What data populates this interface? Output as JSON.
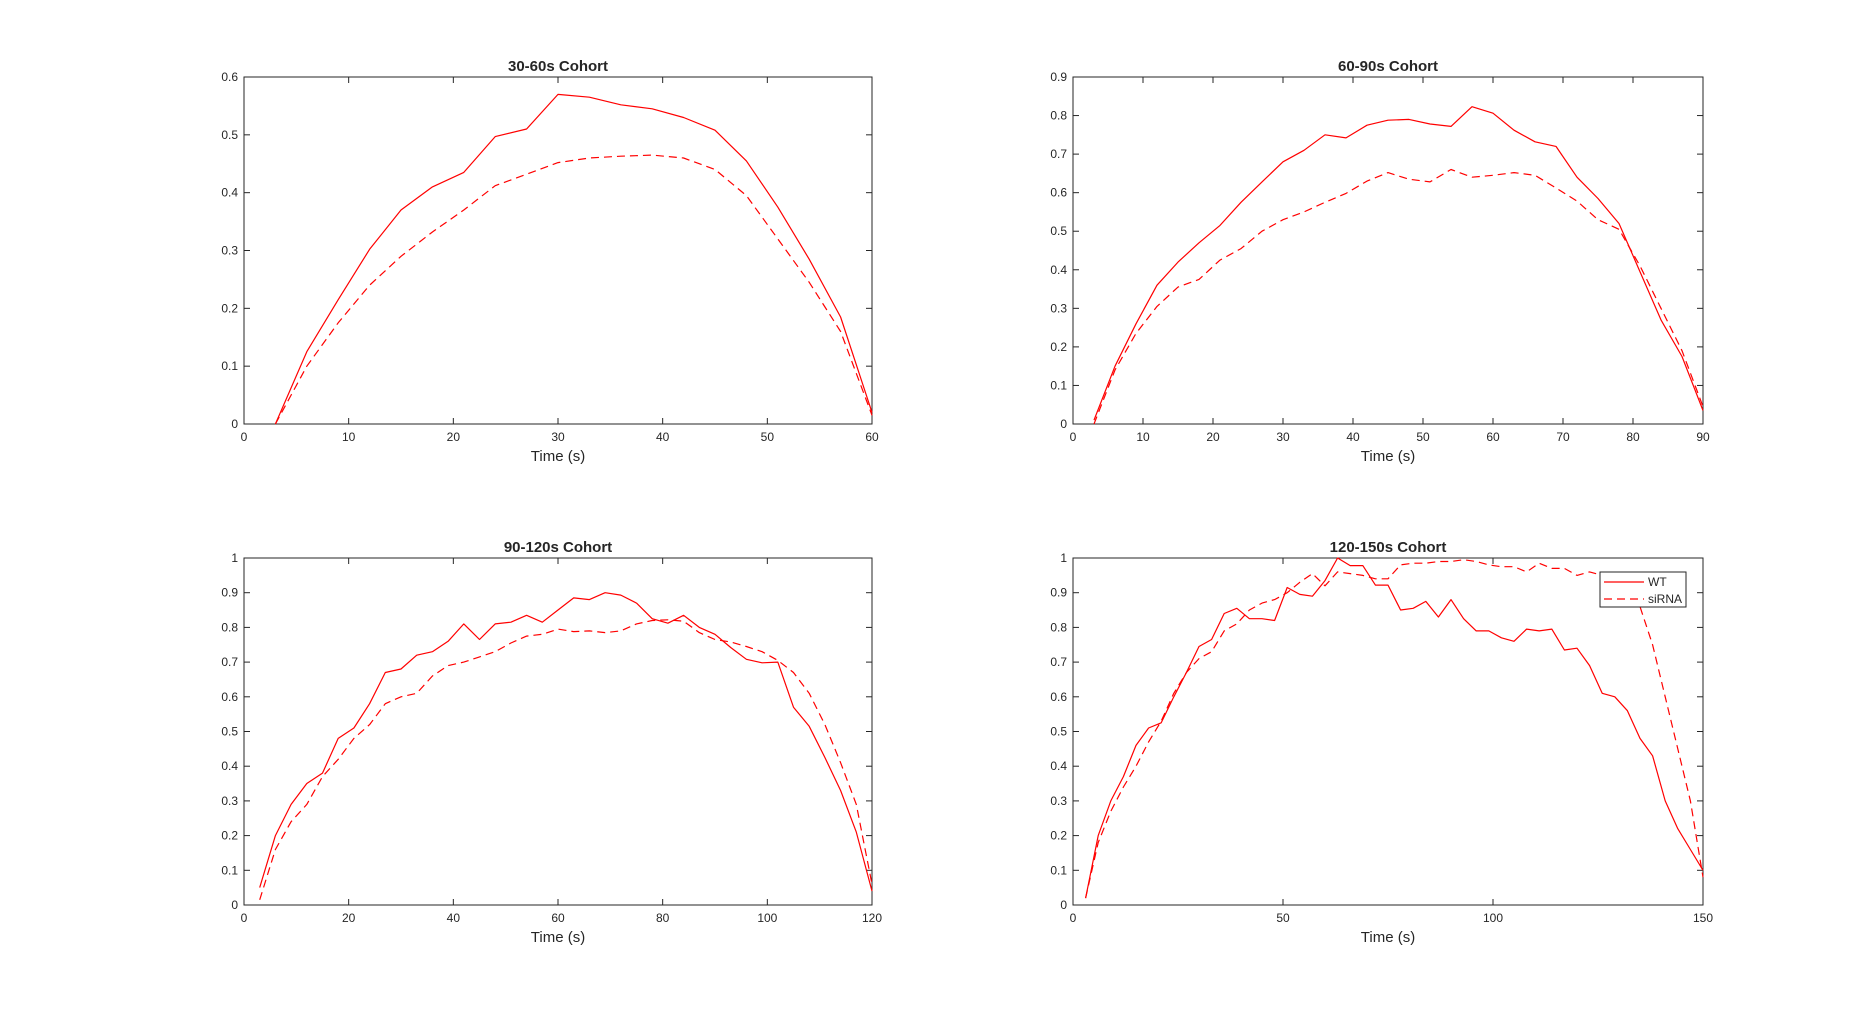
{
  "colors": {
    "series": "#ff0000",
    "axis": "#262626",
    "background": "#ffffff"
  },
  "chart_data": [
    {
      "type": "line",
      "title": "30-60s Cohort",
      "xlabel": "Time (s)",
      "ylabel": "",
      "xlim": [
        0,
        60
      ],
      "ylim": [
        0,
        0.6
      ],
      "xticks": [
        0,
        10,
        20,
        30,
        40,
        50,
        60
      ],
      "yticks": [
        0,
        0.1,
        0.2,
        0.3,
        0.4,
        0.5,
        0.6
      ],
      "grid": false,
      "series": [
        {
          "style": "solid",
          "x": [
            3,
            6,
            9,
            12,
            15,
            18,
            21,
            24,
            27,
            30,
            33,
            36,
            39,
            42,
            45,
            48,
            51,
            54,
            57,
            60
          ],
          "y": [
            0.0,
            0.125,
            0.215,
            0.302,
            0.37,
            0.41,
            0.435,
            0.497,
            0.51,
            0.57,
            0.565,
            0.552,
            0.545,
            0.53,
            0.508,
            0.455,
            0.375,
            0.285,
            0.185,
            0.02
          ]
        },
        {
          "style": "dashed",
          "x": [
            3,
            6,
            9,
            12,
            15,
            18,
            21,
            24,
            27,
            30,
            33,
            36,
            39,
            42,
            45,
            48,
            51,
            54,
            57,
            60
          ],
          "y": [
            0.0,
            0.1,
            0.175,
            0.24,
            0.29,
            0.332,
            0.37,
            0.412,
            0.432,
            0.452,
            0.46,
            0.463,
            0.465,
            0.46,
            0.44,
            0.395,
            0.32,
            0.245,
            0.16,
            0.015
          ]
        }
      ]
    },
    {
      "type": "line",
      "title": "60-90s Cohort",
      "xlabel": "Time (s)",
      "ylabel": "",
      "xlim": [
        0,
        90
      ],
      "ylim": [
        0,
        0.9
      ],
      "xticks": [
        0,
        10,
        20,
        30,
        40,
        50,
        60,
        70,
        80,
        90
      ],
      "yticks": [
        0,
        0.1,
        0.2,
        0.3,
        0.4,
        0.5,
        0.6,
        0.7,
        0.8,
        0.9
      ],
      "grid": false,
      "series": [
        {
          "style": "solid",
          "x": [
            3,
            6,
            9,
            12,
            15,
            18,
            21,
            24,
            27,
            30,
            33,
            36,
            39,
            42,
            45,
            48,
            51,
            54,
            57,
            60,
            63,
            66,
            69,
            72,
            75,
            78,
            81,
            84,
            87,
            90
          ],
          "y": [
            0.01,
            0.15,
            0.26,
            0.36,
            0.42,
            0.47,
            0.515,
            0.575,
            0.628,
            0.68,
            0.71,
            0.75,
            0.742,
            0.775,
            0.788,
            0.79,
            0.778,
            0.772,
            0.823,
            0.806,
            0.762,
            0.732,
            0.72,
            0.64,
            0.585,
            0.52,
            0.395,
            0.27,
            0.175,
            0.035
          ]
        },
        {
          "style": "dashed",
          "x": [
            3,
            6,
            9,
            12,
            15,
            18,
            21,
            24,
            27,
            30,
            33,
            36,
            39,
            42,
            45,
            48,
            51,
            54,
            57,
            60,
            63,
            66,
            69,
            72,
            75,
            78,
            81,
            84,
            87,
            90
          ],
          "y": [
            0.0,
            0.14,
            0.235,
            0.305,
            0.355,
            0.375,
            0.425,
            0.455,
            0.5,
            0.53,
            0.55,
            0.575,
            0.598,
            0.63,
            0.652,
            0.635,
            0.628,
            0.66,
            0.64,
            0.645,
            0.652,
            0.645,
            0.612,
            0.578,
            0.53,
            0.505,
            0.41,
            0.3,
            0.19,
            0.045
          ]
        }
      ]
    },
    {
      "type": "line",
      "title": "90-120s Cohort",
      "xlabel": "Time (s)",
      "ylabel": "",
      "xlim": [
        0,
        120
      ],
      "ylim": [
        0,
        1
      ],
      "xticks": [
        0,
        20,
        40,
        60,
        80,
        100,
        120
      ],
      "yticks": [
        0,
        0.1,
        0.2,
        0.3,
        0.4,
        0.5,
        0.6,
        0.7,
        0.8,
        0.9,
        1
      ],
      "grid": false,
      "series": [
        {
          "style": "solid",
          "x": [
            3,
            6,
            9,
            12,
            15,
            18,
            21,
            24,
            27,
            30,
            33,
            36,
            39,
            42,
            45,
            48,
            51,
            54,
            57,
            60,
            63,
            66,
            69,
            72,
            75,
            78,
            81,
            84,
            87,
            90,
            93,
            96,
            99,
            102,
            105,
            108,
            111,
            114,
            117,
            120
          ],
          "y": [
            0.05,
            0.2,
            0.29,
            0.35,
            0.38,
            0.48,
            0.51,
            0.58,
            0.67,
            0.68,
            0.72,
            0.73,
            0.76,
            0.81,
            0.765,
            0.81,
            0.815,
            0.835,
            0.815,
            0.85,
            0.885,
            0.88,
            0.9,
            0.893,
            0.87,
            0.825,
            0.812,
            0.835,
            0.8,
            0.78,
            0.742,
            0.708,
            0.698,
            0.7,
            0.57,
            0.515,
            0.425,
            0.33,
            0.21,
            0.04
          ]
        },
        {
          "style": "dashed",
          "x": [
            3,
            6,
            9,
            12,
            15,
            18,
            21,
            24,
            27,
            30,
            33,
            36,
            39,
            42,
            45,
            48,
            51,
            54,
            57,
            60,
            63,
            66,
            69,
            72,
            75,
            78,
            81,
            84,
            87,
            90,
            93,
            96,
            99,
            102,
            105,
            108,
            111,
            114,
            117,
            120
          ],
          "y": [
            0.015,
            0.16,
            0.24,
            0.29,
            0.37,
            0.42,
            0.48,
            0.52,
            0.58,
            0.6,
            0.61,
            0.66,
            0.69,
            0.7,
            0.715,
            0.73,
            0.755,
            0.775,
            0.78,
            0.795,
            0.788,
            0.79,
            0.785,
            0.79,
            0.81,
            0.82,
            0.822,
            0.818,
            0.785,
            0.765,
            0.758,
            0.745,
            0.73,
            0.705,
            0.67,
            0.61,
            0.52,
            0.41,
            0.29,
            0.06
          ]
        }
      ]
    },
    {
      "type": "line",
      "title": "120-150s Cohort",
      "xlabel": "Time (s)",
      "ylabel": "",
      "xlim": [
        0,
        150
      ],
      "ylim": [
        0,
        1
      ],
      "xticks": [
        0,
        50,
        100,
        150
      ],
      "yticks": [
        0,
        0.1,
        0.2,
        0.3,
        0.4,
        0.5,
        0.6,
        0.7,
        0.8,
        0.9,
        1
      ],
      "grid": false,
      "legend": {
        "position": "top-right",
        "entries": [
          "WT",
          "siRNA"
        ]
      },
      "series": [
        {
          "name": "WT",
          "style": "solid",
          "x": [
            3,
            6,
            9,
            12,
            15,
            18,
            21,
            24,
            27,
            30,
            33,
            36,
            39,
            42,
            45,
            48,
            51,
            54,
            57,
            60,
            63,
            66,
            69,
            72,
            75,
            78,
            81,
            84,
            87,
            90,
            93,
            96,
            99,
            102,
            105,
            108,
            111,
            114,
            117,
            120,
            123,
            126,
            129,
            132,
            135,
            138,
            141,
            144,
            147,
            150
          ],
          "y": [
            0.02,
            0.2,
            0.3,
            0.37,
            0.46,
            0.51,
            0.525,
            0.6,
            0.67,
            0.745,
            0.765,
            0.84,
            0.855,
            0.825,
            0.825,
            0.82,
            0.915,
            0.895,
            0.89,
            0.935,
            1.0,
            0.978,
            0.978,
            0.922,
            0.922,
            0.85,
            0.855,
            0.875,
            0.83,
            0.88,
            0.825,
            0.79,
            0.79,
            0.77,
            0.76,
            0.795,
            0.79,
            0.795,
            0.735,
            0.74,
            0.69,
            0.61,
            0.6,
            0.56,
            0.48,
            0.43,
            0.3,
            0.22,
            0.16,
            0.1
          ]
        },
        {
          "name": "siRNA",
          "style": "dashed",
          "x": [
            3,
            6,
            9,
            12,
            15,
            18,
            21,
            24,
            27,
            30,
            33,
            36,
            39,
            42,
            45,
            48,
            51,
            54,
            57,
            60,
            63,
            66,
            69,
            72,
            75,
            78,
            81,
            84,
            87,
            90,
            93,
            96,
            99,
            102,
            105,
            108,
            111,
            114,
            117,
            120,
            123,
            126,
            129,
            132,
            135,
            138,
            141,
            144,
            147,
            150
          ],
          "y": [
            0.02,
            0.18,
            0.27,
            0.34,
            0.4,
            0.47,
            0.53,
            0.61,
            0.67,
            0.71,
            0.73,
            0.79,
            0.81,
            0.85,
            0.87,
            0.88,
            0.9,
            0.93,
            0.955,
            0.92,
            0.96,
            0.955,
            0.95,
            0.94,
            0.94,
            0.98,
            0.985,
            0.985,
            0.99,
            0.99,
            0.995,
            0.99,
            0.98,
            0.975,
            0.975,
            0.96,
            0.985,
            0.97,
            0.97,
            0.95,
            0.96,
            0.95,
            0.93,
            0.91,
            0.86,
            0.75,
            0.6,
            0.45,
            0.3,
            0.08
          ]
        }
      ]
    }
  ]
}
